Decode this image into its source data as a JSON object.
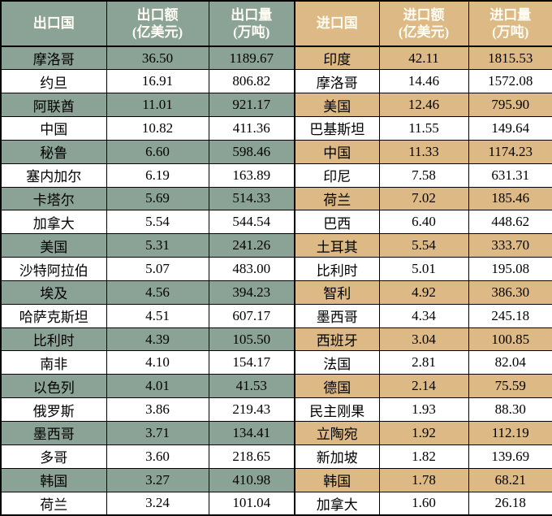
{
  "colors": {
    "export_accent": "#8BA396",
    "import_accent": "#DDB986",
    "header_text": "#FFFDF4",
    "body_text": "#000000",
    "border": "#000000",
    "row_white": "#FFFFFF"
  },
  "chart_data": [
    {
      "type": "table",
      "name": "export",
      "headers": [
        {
          "label": "出口国",
          "unit": ""
        },
        {
          "label": "出口额",
          "unit": "(亿美元)"
        },
        {
          "label": "出口量",
          "unit": "(万吨)"
        }
      ],
      "rows": [
        [
          "摩洛哥",
          "36.50",
          "1189.67"
        ],
        [
          "约旦",
          "16.91",
          "806.82"
        ],
        [
          "阿联酋",
          "11.01",
          "921.17"
        ],
        [
          "中国",
          "10.82",
          "411.36"
        ],
        [
          "秘鲁",
          "6.60",
          "598.46"
        ],
        [
          "塞内加尔",
          "6.19",
          "163.89"
        ],
        [
          "卡塔尔",
          "5.69",
          "514.33"
        ],
        [
          "加拿大",
          "5.54",
          "544.54"
        ],
        [
          "美国",
          "5.31",
          "241.26"
        ],
        [
          "沙特阿拉伯",
          "5.07",
          "483.00"
        ],
        [
          "埃及",
          "4.56",
          "394.23"
        ],
        [
          "哈萨克斯坦",
          "4.51",
          "607.17"
        ],
        [
          "比利时",
          "4.39",
          "105.50"
        ],
        [
          "南非",
          "4.10",
          "154.17"
        ],
        [
          "以色列",
          "4.01",
          "41.53"
        ],
        [
          "俄罗斯",
          "3.86",
          "219.43"
        ],
        [
          "墨西哥",
          "3.71",
          "134.41"
        ],
        [
          "多哥",
          "3.60",
          "218.65"
        ],
        [
          "韩国",
          "3.27",
          "410.98"
        ],
        [
          "荷兰",
          "3.24",
          "101.04"
        ]
      ]
    },
    {
      "type": "table",
      "name": "import",
      "headers": [
        {
          "label": "进口国",
          "unit": ""
        },
        {
          "label": "进口额",
          "unit": "(亿美元)"
        },
        {
          "label": "进口量",
          "unit": "(万吨)"
        }
      ],
      "rows": [
        [
          "印度",
          "42.11",
          "1815.53"
        ],
        [
          "摩洛哥",
          "14.46",
          "1572.08"
        ],
        [
          "美国",
          "12.46",
          "795.90"
        ],
        [
          "巴基斯坦",
          "11.55",
          "149.64"
        ],
        [
          "中国",
          "11.33",
          "1174.23"
        ],
        [
          "印尼",
          "7.58",
          "631.31"
        ],
        [
          "荷兰",
          "7.02",
          "185.46"
        ],
        [
          "巴西",
          "6.40",
          "448.62"
        ],
        [
          "土耳其",
          "5.54",
          "333.70"
        ],
        [
          "比利时",
          "5.01",
          "195.08"
        ],
        [
          "智利",
          "4.92",
          "386.30"
        ],
        [
          "墨西哥",
          "4.34",
          "245.18"
        ],
        [
          "西班牙",
          "3.04",
          "100.85"
        ],
        [
          "法国",
          "2.81",
          "82.04"
        ],
        [
          "德国",
          "2.14",
          "75.59"
        ],
        [
          "民主刚果",
          "1.93",
          "88.30"
        ],
        [
          "立陶宛",
          "1.92",
          "112.19"
        ],
        [
          "新加坡",
          "1.82",
          "139.69"
        ],
        [
          "韩国",
          "1.78",
          "68.21"
        ],
        [
          "加拿大",
          "1.60",
          "26.18"
        ]
      ]
    }
  ]
}
